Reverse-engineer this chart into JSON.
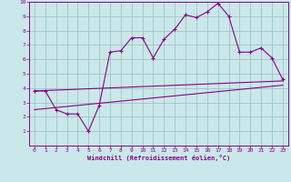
{
  "xlabel": "Windchill (Refroidissement éolien,°C)",
  "bg_color": "#cae8ea",
  "line_color": "#880088",
  "grid_color": "#99bbbb",
  "xlim": [
    -0.5,
    23.5
  ],
  "ylim": [
    0,
    10
  ],
  "xticks": [
    0,
    1,
    2,
    3,
    4,
    5,
    6,
    7,
    8,
    9,
    10,
    11,
    12,
    13,
    14,
    15,
    16,
    17,
    18,
    19,
    20,
    21,
    22,
    23
  ],
  "yticks": [
    1,
    2,
    3,
    4,
    5,
    6,
    7,
    8,
    9,
    10
  ],
  "line1_x": [
    0,
    1,
    2,
    3,
    4,
    5,
    6,
    7,
    8,
    9,
    10,
    11,
    12,
    13,
    14,
    15,
    16,
    17,
    18,
    19,
    20,
    21,
    22,
    23
  ],
  "line1_y": [
    3.8,
    3.8,
    2.5,
    2.2,
    2.2,
    1.0,
    2.8,
    6.5,
    6.6,
    7.5,
    7.5,
    6.1,
    7.4,
    8.1,
    9.1,
    8.9,
    9.3,
    9.9,
    9.0,
    6.5,
    6.5,
    6.8,
    6.1,
    4.6
  ],
  "line2_x": [
    0,
    23
  ],
  "line2_y": [
    3.8,
    4.5
  ],
  "line3_x": [
    0,
    23
  ],
  "line3_y": [
    2.5,
    4.2
  ],
  "marker_x": [
    0,
    1,
    2,
    3,
    4,
    5,
    6,
    7,
    8,
    9,
    10,
    11,
    12,
    13,
    14,
    15,
    16,
    17,
    18,
    19,
    20,
    21,
    22,
    23
  ],
  "marker_y": [
    3.8,
    3.8,
    2.5,
    2.2,
    2.2,
    1.0,
    2.8,
    6.5,
    6.6,
    7.5,
    7.5,
    6.1,
    7.4,
    8.1,
    9.1,
    8.9,
    9.3,
    9.9,
    9.0,
    6.5,
    6.5,
    6.8,
    6.1,
    4.6
  ]
}
